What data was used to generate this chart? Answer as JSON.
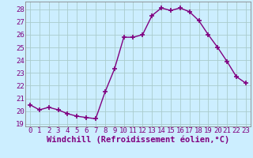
{
  "x": [
    0,
    1,
    2,
    3,
    4,
    5,
    6,
    7,
    8,
    9,
    10,
    11,
    12,
    13,
    14,
    15,
    16,
    17,
    18,
    19,
    20,
    21,
    22,
    23
  ],
  "y": [
    20.5,
    20.1,
    20.3,
    20.1,
    19.8,
    19.6,
    19.5,
    19.4,
    21.5,
    23.3,
    25.8,
    25.8,
    26.0,
    27.5,
    28.1,
    27.9,
    28.1,
    27.8,
    27.1,
    26.0,
    25.0,
    23.9,
    22.7,
    22.2
  ],
  "line_color": "#800080",
  "marker": "+",
  "markersize": 4,
  "linewidth": 1.0,
  "xlabel": "Windchill (Refroidissement éolien,°C)",
  "ylabel": "",
  "title": "",
  "xlim": [
    -0.5,
    23.5
  ],
  "ylim": [
    18.8,
    28.6
  ],
  "yticks": [
    19,
    20,
    21,
    22,
    23,
    24,
    25,
    26,
    27,
    28
  ],
  "xticks": [
    0,
    1,
    2,
    3,
    4,
    5,
    6,
    7,
    8,
    9,
    10,
    11,
    12,
    13,
    14,
    15,
    16,
    17,
    18,
    19,
    20,
    21,
    22,
    23
  ],
  "bg_color": "#cceeff",
  "grid_color": "#aacccc",
  "tick_label_fontsize": 6.5,
  "xlabel_fontsize": 7.5
}
